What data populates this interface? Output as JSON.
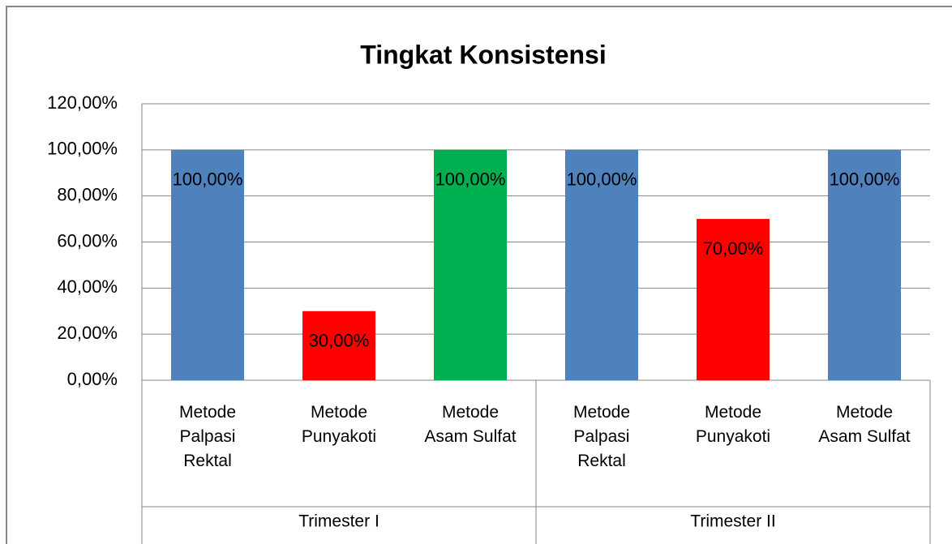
{
  "chart_data": {
    "type": "bar",
    "title": "Tingkat Konsistensi",
    "categories": [
      "Metode Palpasi Rektal",
      "Metode Punyakoti",
      "Metode Asam Sulfat",
      "Metode Palpasi Rektal",
      "Metode Punyakoti",
      "Metode Asam Sulfat"
    ],
    "groups": [
      "Trimester I",
      "Trimester II"
    ],
    "values": [
      100,
      30,
      100,
      100,
      70,
      100
    ],
    "value_labels": [
      "100,00%",
      "30,00%",
      "100,00%",
      "100,00%",
      "70,00%",
      "100,00%"
    ],
    "colors": [
      "#4f81bd",
      "#ff0000",
      "#00b050",
      "#4f81bd",
      "#ff0000",
      "#4f81bd"
    ],
    "ylim": [
      0,
      120
    ],
    "yticks": [
      {
        "value": 0,
        "label": "0,00%"
      },
      {
        "value": 20,
        "label": "20,00%"
      },
      {
        "value": 40,
        "label": "40,00%"
      },
      {
        "value": 60,
        "label": "60,00%"
      },
      {
        "value": 80,
        "label": "80,00%"
      },
      {
        "value": 100,
        "label": "100,00%"
      },
      {
        "value": 120,
        "label": "120,00%"
      }
    ],
    "grid": true
  }
}
